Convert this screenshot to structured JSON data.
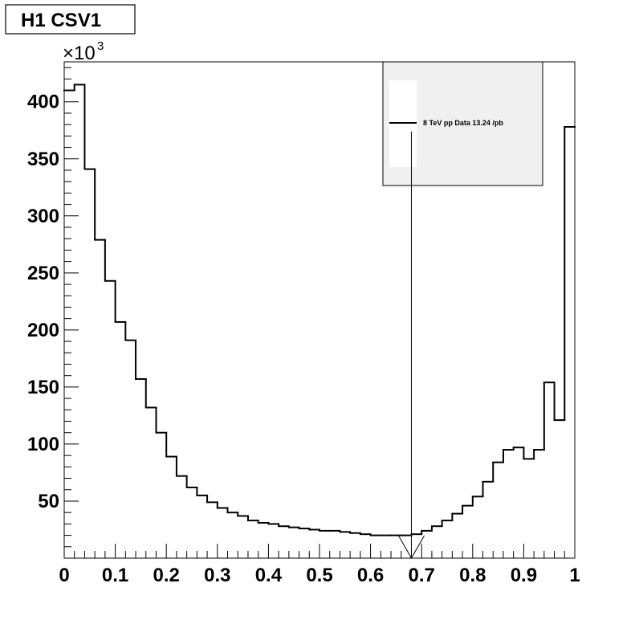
{
  "title": "H1 CSV1",
  "chart_data": {
    "type": "bar",
    "style": "step-histogram",
    "title": "H1 CSV1",
    "xlabel": "",
    "ylabel": "",
    "xlim": [
      0,
      1
    ],
    "ylim": [
      0,
      435
    ],
    "y_multiplier_base": "×10",
    "y_multiplier_exponent": "3",
    "grid": false,
    "bin_width": 0.02,
    "bin_edges_start": 0,
    "values": [
      410,
      415,
      341,
      279,
      243,
      207,
      191,
      157,
      132,
      110,
      89,
      72,
      62,
      55,
      49,
      44,
      40,
      37,
      33,
      31,
      30,
      28,
      27,
      26,
      25,
      24,
      24,
      23,
      22,
      21,
      20,
      20,
      20,
      20,
      21,
      24,
      28,
      33,
      39,
      46,
      54,
      67,
      84,
      95,
      97,
      87,
      95,
      154,
      121,
      378
    ],
    "x_ticks": [
      "0",
      "0.1",
      "0.2",
      "0.3",
      "0.4",
      "0.5",
      "0.6",
      "0.7",
      "0.8",
      "0.9",
      "1"
    ],
    "y_ticks": [
      "50",
      "100",
      "150",
      "200",
      "250",
      "300",
      "350",
      "400"
    ],
    "legend": {
      "position": "top-right",
      "entries": [
        {
          "name": "8 TeV pp Data 13.24 /pb",
          "color": "#000000"
        }
      ]
    },
    "annotation": {
      "type": "vertical-arrow",
      "x": 0.68,
      "y_from": 374,
      "y_to": 0
    },
    "colors": {
      "line": "#000000",
      "legend_bg": "#f0f0f0",
      "background": "#ffffff"
    }
  }
}
